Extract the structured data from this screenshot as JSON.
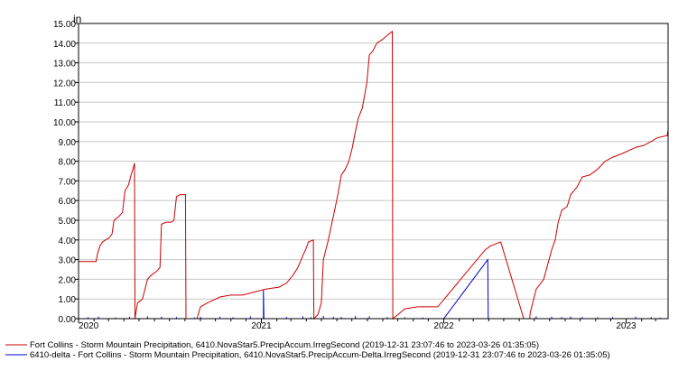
{
  "chart_data": {
    "type": "line",
    "ylabel": "in",
    "ylim": [
      0,
      15
    ],
    "xlim": [
      "2020-01-01",
      "2023-03-26"
    ],
    "grid": "horizontal",
    "legend_position": "bottom",
    "y_ticks": [
      "0.00",
      "1.00",
      "2.00",
      "3.00",
      "4.00",
      "5.00",
      "6.00",
      "7.00",
      "8.00",
      "9.00",
      "10.00",
      "11.00",
      "12.00",
      "13.00",
      "14.00",
      "15.00"
    ],
    "x_ticks": [
      {
        "date": "2020-01-01",
        "label": "2020"
      },
      {
        "date": "2021-01-01",
        "label": "2021"
      },
      {
        "date": "2022-01-01",
        "label": "2022"
      },
      {
        "date": "2023-01-01",
        "label": "2023"
      }
    ],
    "series": [
      {
        "name": "Fort Collins - Storm Mountain Precipitation, 6410.NovaStar5.PrecipAccum.IrregSecond (2019-12-31 23:07:46 to 2023-03-26 01:35:05)",
        "color": "#cc0000",
        "points": [
          [
            "2020-01-01",
            2.9
          ],
          [
            "2020-02-05",
            2.9
          ],
          [
            "2020-02-08",
            3.3
          ],
          [
            "2020-02-13",
            3.7
          ],
          [
            "2020-02-18",
            3.9
          ],
          [
            "2020-02-24",
            4.0
          ],
          [
            "2020-03-02",
            4.1
          ],
          [
            "2020-03-08",
            4.3
          ],
          [
            "2020-03-12",
            5.0
          ],
          [
            "2020-03-22",
            5.2
          ],
          [
            "2020-03-29",
            5.4
          ],
          [
            "2020-04-03",
            6.5
          ],
          [
            "2020-04-10",
            6.8
          ],
          [
            "2020-04-15",
            7.3
          ],
          [
            "2020-04-19",
            7.6
          ],
          [
            "2020-04-22",
            7.9
          ],
          [
            "2020-04-23",
            0.0
          ],
          [
            "2020-04-28",
            0.8
          ],
          [
            "2020-05-08",
            1.0
          ],
          [
            "2020-05-18",
            2.0
          ],
          [
            "2020-05-25",
            2.2
          ],
          [
            "2020-06-05",
            2.4
          ],
          [
            "2020-06-12",
            2.6
          ],
          [
            "2020-06-15",
            4.8
          ],
          [
            "2020-06-25",
            4.9
          ],
          [
            "2020-07-05",
            4.9
          ],
          [
            "2020-07-10",
            5.0
          ],
          [
            "2020-07-15",
            6.2
          ],
          [
            "2020-07-22",
            6.3
          ],
          [
            "2020-08-02",
            6.3
          ],
          [
            "2020-08-03",
            0.0
          ],
          [
            "2020-08-25",
            0.0
          ],
          [
            "2020-09-01",
            0.6
          ],
          [
            "2020-09-15",
            0.8
          ],
          [
            "2020-10-10",
            1.1
          ],
          [
            "2020-11-01",
            1.2
          ],
          [
            "2020-11-25",
            1.2
          ],
          [
            "2020-12-10",
            1.3
          ],
          [
            "2021-01-10",
            1.5
          ],
          [
            "2021-02-05",
            1.6
          ],
          [
            "2021-02-20",
            1.8
          ],
          [
            "2021-03-05",
            2.2
          ],
          [
            "2021-03-15",
            2.6
          ],
          [
            "2021-03-25",
            3.2
          ],
          [
            "2021-04-01",
            3.6
          ],
          [
            "2021-04-05",
            3.9
          ],
          [
            "2021-04-15",
            4.0
          ],
          [
            "2021-04-16",
            0.0
          ],
          [
            "2021-04-24",
            0.2
          ],
          [
            "2021-05-01",
            0.8
          ],
          [
            "2021-05-05",
            3.0
          ],
          [
            "2021-05-14",
            3.9
          ],
          [
            "2021-05-25",
            5.2
          ],
          [
            "2021-06-03",
            6.3
          ],
          [
            "2021-06-10",
            7.3
          ],
          [
            "2021-06-18",
            7.6
          ],
          [
            "2021-06-25",
            8.0
          ],
          [
            "2021-07-02",
            8.7
          ],
          [
            "2021-07-08",
            9.5
          ],
          [
            "2021-07-14",
            10.2
          ],
          [
            "2021-07-22",
            10.7
          ],
          [
            "2021-07-31",
            12.0
          ],
          [
            "2021-08-05",
            13.4
          ],
          [
            "2021-08-12",
            13.6
          ],
          [
            "2021-08-20",
            14.0
          ],
          [
            "2021-09-01",
            14.2
          ],
          [
            "2021-09-10",
            14.4
          ],
          [
            "2021-09-20",
            14.6
          ],
          [
            "2021-09-21",
            0.0
          ],
          [
            "2021-10-01",
            0.2
          ],
          [
            "2021-10-15",
            0.5
          ],
          [
            "2021-11-10",
            0.6
          ],
          [
            "2021-12-20",
            0.6
          ],
          [
            "2022-03-25",
            3.5
          ],
          [
            "2022-04-05",
            3.7
          ],
          [
            "2022-04-25",
            3.9
          ],
          [
            "2022-06-10",
            0.0
          ],
          [
            "2022-06-22",
            0.0
          ],
          [
            "2022-06-23",
            0.3
          ],
          [
            "2022-07-05",
            1.5
          ],
          [
            "2022-07-20",
            2.0
          ],
          [
            "2022-08-05",
            3.5
          ],
          [
            "2022-08-12",
            4.0
          ],
          [
            "2022-08-18",
            4.9
          ],
          [
            "2022-08-25",
            5.5
          ],
          [
            "2022-09-05",
            5.7
          ],
          [
            "2022-09-12",
            6.3
          ],
          [
            "2022-09-25",
            6.7
          ],
          [
            "2022-10-05",
            7.2
          ],
          [
            "2022-10-20",
            7.3
          ],
          [
            "2022-11-05",
            7.6
          ],
          [
            "2022-11-20",
            8.0
          ],
          [
            "2022-12-05",
            8.2
          ],
          [
            "2022-12-25",
            8.4
          ],
          [
            "2023-01-20",
            8.7
          ],
          [
            "2023-02-05",
            8.8
          ],
          [
            "2023-02-20",
            9.0
          ],
          [
            "2023-03-05",
            9.2
          ],
          [
            "2023-03-24",
            9.3
          ],
          [
            "2023-03-26",
            9.6
          ]
        ]
      },
      {
        "name": "6410-delta - Fort Collins - Storm Mountain Precipitation, 6410.NovaStar5.PrecipAccum-Delta.IrregSecond (2019-12-31 23:07:46 to 2023-03-26 01:35:05)",
        "color": "#0000cc",
        "points": [
          [
            "2020-01-01",
            0.0
          ],
          [
            "2021-01-05",
            0.0
          ],
          [
            "2021-01-05",
            1.45
          ],
          [
            "2021-01-06",
            0.0
          ],
          [
            "2022-01-01",
            0.0
          ],
          [
            "2022-03-30",
            3.0
          ],
          [
            "2022-03-31",
            0.0
          ],
          [
            "2023-03-26",
            0.0
          ]
        ],
        "spikes": [
          [
            "2020-01-20",
            0.08
          ],
          [
            "2020-02-10",
            0.1
          ],
          [
            "2020-03-15",
            0.06
          ],
          [
            "2020-04-12",
            0.09
          ],
          [
            "2020-05-18",
            0.12
          ],
          [
            "2020-06-15",
            0.1
          ],
          [
            "2020-07-15",
            0.08
          ],
          [
            "2020-08-20",
            0.06
          ],
          [
            "2020-09-01",
            0.09
          ],
          [
            "2020-10-10",
            0.1
          ],
          [
            "2020-11-05",
            0.07
          ],
          [
            "2020-12-10",
            0.12
          ],
          [
            "2021-02-20",
            0.09
          ],
          [
            "2021-03-25",
            0.12
          ],
          [
            "2021-04-10",
            0.08
          ],
          [
            "2021-05-05",
            0.14
          ],
          [
            "2021-05-25",
            0.1
          ],
          [
            "2021-06-10",
            0.09
          ],
          [
            "2021-07-08",
            0.13
          ],
          [
            "2021-08-05",
            0.12
          ],
          [
            "2021-09-10",
            0.08
          ],
          [
            "2021-10-15",
            0.07
          ],
          [
            "2021-11-20",
            0.06
          ],
          [
            "2022-07-05",
            0.12
          ],
          [
            "2022-08-05",
            0.1
          ],
          [
            "2022-08-25",
            0.08
          ],
          [
            "2022-09-12",
            0.11
          ],
          [
            "2022-10-05",
            0.09
          ],
          [
            "2022-11-05",
            0.07
          ],
          [
            "2022-12-05",
            0.08
          ],
          [
            "2023-01-20",
            0.1
          ],
          [
            "2023-02-20",
            0.08
          ],
          [
            "2023-03-10",
            0.06
          ]
        ]
      }
    ]
  }
}
